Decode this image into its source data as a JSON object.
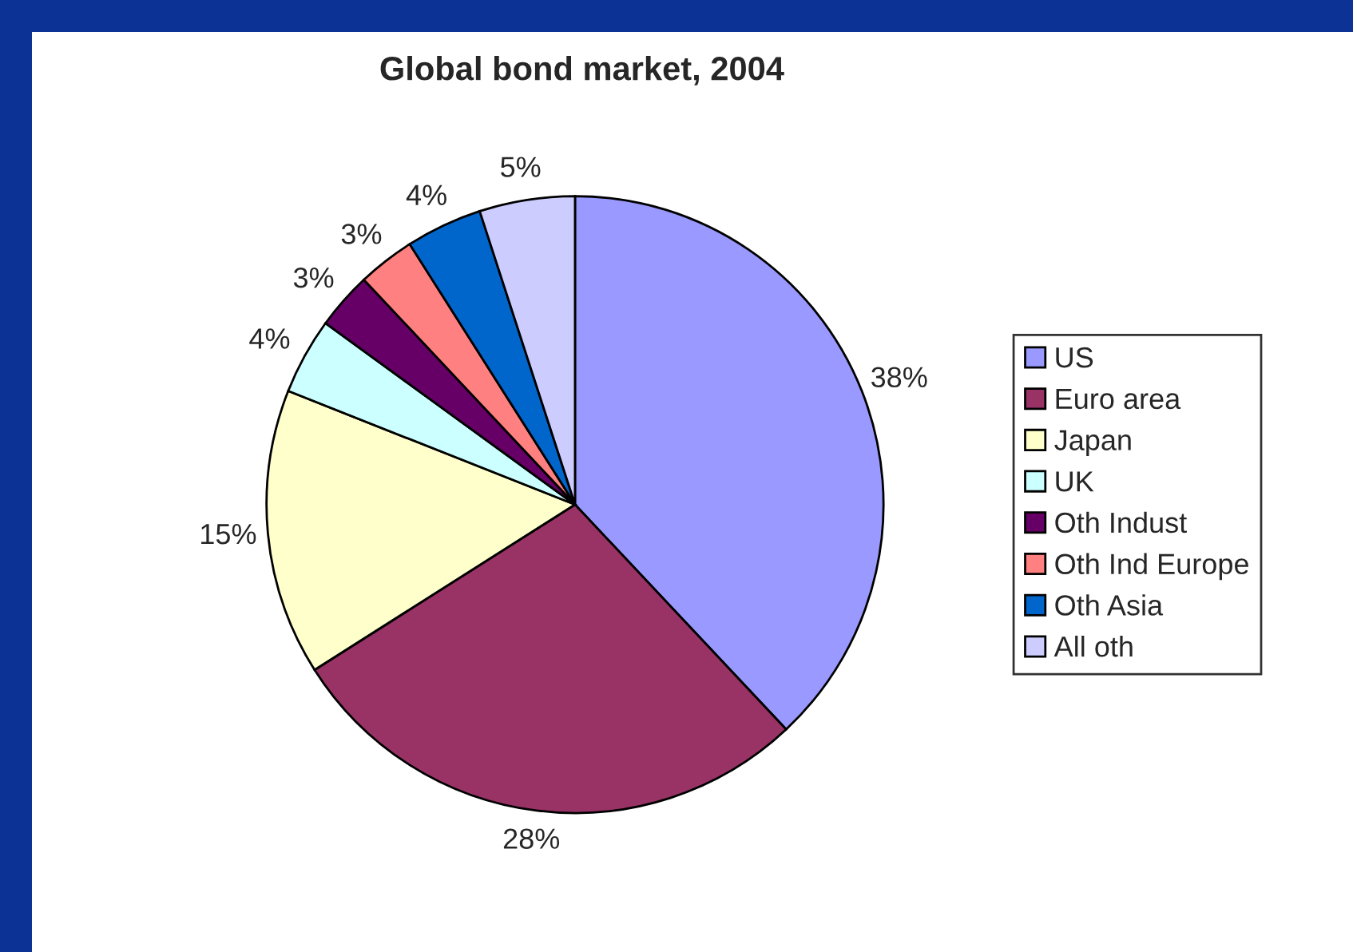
{
  "chart_data": {
    "type": "pie",
    "title": "Global bond market, 2004",
    "categories": [
      "US",
      "Euro area",
      "Japan",
      "UK",
      "Oth Indust",
      "Oth Ind Europe",
      "Oth Asia",
      "All oth"
    ],
    "values": [
      38,
      28,
      15,
      4,
      3,
      3,
      4,
      5
    ],
    "colors": [
      "#9999ff",
      "#993366",
      "#ffffcc",
      "#ccffff",
      "#660066",
      "#ff8080",
      "#0066cc",
      "#ccccff"
    ],
    "value_labels": [
      "38%",
      "28%",
      "15%",
      "4%",
      "3%",
      "3%",
      "4%",
      "5%"
    ],
    "legend": "right"
  }
}
